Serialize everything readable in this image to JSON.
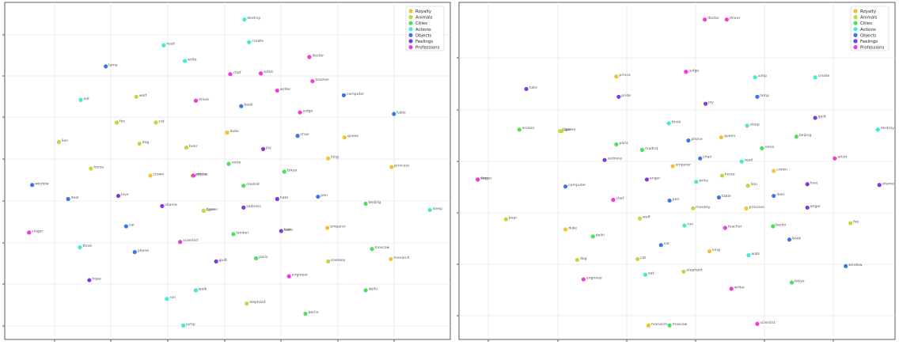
{
  "chart_data": [
    {
      "type": "scatter",
      "title": "",
      "xlabel": "",
      "ylabel": "",
      "grid": true,
      "legend_position": "top-right",
      "xlim": [
        0,
        569
      ],
      "ylim": [
        432,
        0
      ],
      "series": [
        {
          "name": "Royalty",
          "color": "#f2c232",
          "points": [
            {
              "label": "monarch",
              "x": 493,
              "y": 103
            },
            {
              "label": "emperor",
              "x": 412,
              "y": 143
            },
            {
              "label": "queen",
              "x": 254,
              "y": 165
            },
            {
              "label": "crown",
              "x": 186,
              "y": 210
            },
            {
              "label": "princess",
              "x": 494,
              "y": 221
            },
            {
              "label": "king",
              "x": 413,
              "y": 232
            },
            {
              "label": "queen",
              "x": 434,
              "y": 259
            },
            {
              "label": "duke",
              "x": 284,
              "y": 265
            },
            {
              "label": "prince",
              "x": 240,
              "y": 210
            }
          ]
        },
        {
          "name": "Animals",
          "color": "#b4e03c",
          "points": [
            {
              "label": "elephant",
              "x": 309,
              "y": 46
            },
            {
              "label": "monkey",
              "x": 413,
              "y": 100
            },
            {
              "label": "tiger",
              "x": 254,
              "y": 165
            },
            {
              "label": "horse",
              "x": 110,
              "y": 219
            },
            {
              "label": "lion",
              "x": 69,
              "y": 253
            },
            {
              "label": "dog",
              "x": 172,
              "y": 251
            },
            {
              "label": "bear",
              "x": 232,
              "y": 246
            },
            {
              "label": "fox",
              "x": 143,
              "y": 278
            },
            {
              "label": "cat",
              "x": 193,
              "y": 278
            },
            {
              "label": "wolf",
              "x": 168,
              "y": 311
            }
          ]
        },
        {
          "name": "Cities",
          "color": "#50e05a",
          "points": [
            {
              "label": "berlin",
              "x": 384,
              "y": 33
            },
            {
              "label": "delhi",
              "x": 461,
              "y": 63
            },
            {
              "label": "paris",
              "x": 321,
              "y": 104
            },
            {
              "label": "moscow",
              "x": 469,
              "y": 116
            },
            {
              "label": "london",
              "x": 292,
              "y": 135
            },
            {
              "label": "beijing",
              "x": 461,
              "y": 174
            },
            {
              "label": "madrid",
              "x": 305,
              "y": 197
            },
            {
              "label": "tokyo",
              "x": 357,
              "y": 215
            },
            {
              "label": "rome",
              "x": 286,
              "y": 225
            },
            {
              "label": "cairo",
              "x": 353,
              "y": 139
            }
          ]
        },
        {
          "name": "Actions",
          "color": "#46ead2",
          "points": [
            {
              "label": "jump",
              "x": 228,
              "y": 18
            },
            {
              "label": "run",
              "x": 207,
              "y": 52
            },
            {
              "label": "walk",
              "x": 244,
              "y": 63
            },
            {
              "label": "think",
              "x": 96,
              "y": 118
            },
            {
              "label": "sleep",
              "x": 543,
              "y": 166
            },
            {
              "label": "eat",
              "x": 97,
              "y": 307
            },
            {
              "label": "write",
              "x": 230,
              "y": 357
            },
            {
              "label": "read",
              "x": 203,
              "y": 377
            },
            {
              "label": "create",
              "x": 312,
              "y": 381
            },
            {
              "label": "destroy",
              "x": 306,
              "y": 410
            }
          ]
        },
        {
          "name": "Objects",
          "color": "#3a78e6",
          "points": [
            {
              "label": "phone",
              "x": 166,
              "y": 112
            },
            {
              "label": "car",
              "x": 155,
              "y": 145
            },
            {
              "label": "door",
              "x": 81,
              "y": 180
            },
            {
              "label": "pen",
              "x": 400,
              "y": 183
            },
            {
              "label": "window",
              "x": 35,
              "y": 198
            },
            {
              "label": "chair",
              "x": 374,
              "y": 261
            },
            {
              "label": "table",
              "x": 497,
              "y": 289
            },
            {
              "label": "book",
              "x": 302,
              "y": 299
            },
            {
              "label": "computer",
              "x": 433,
              "y": 313
            },
            {
              "label": "lamp",
              "x": 129,
              "y": 350
            }
          ]
        },
        {
          "name": "Feelings",
          "color": "#7d3ae0",
          "points": [
            {
              "label": "hope",
              "x": 108,
              "y": 76
            },
            {
              "label": "guilt",
              "x": 270,
              "y": 100
            },
            {
              "label": "fear",
              "x": 353,
              "y": 139
            },
            {
              "label": "shame",
              "x": 201,
              "y": 171
            },
            {
              "label": "sadness",
              "x": 305,
              "y": 169
            },
            {
              "label": "love",
              "x": 145,
              "y": 184
            },
            {
              "label": "hate",
              "x": 348,
              "y": 180
            },
            {
              "label": "joy",
              "x": 330,
              "y": 244
            }
          ]
        },
        {
          "name": "Professions",
          "color": "#f03cd4",
          "points": [
            {
              "label": "engineer",
              "x": 363,
              "y": 81
            },
            {
              "label": "scientist",
              "x": 224,
              "y": 125
            },
            {
              "label": "singer",
              "x": 31,
              "y": 137
            },
            {
              "label": "doctor",
              "x": 241,
              "y": 210
            },
            {
              "label": "judge",
              "x": 377,
              "y": 291
            },
            {
              "label": "driver",
              "x": 244,
              "y": 306
            },
            {
              "label": "writer",
              "x": 348,
              "y": 319
            },
            {
              "label": "teacher",
              "x": 393,
              "y": 331
            },
            {
              "label": "chef",
              "x": 288,
              "y": 340
            },
            {
              "label": "artist",
              "x": 327,
              "y": 341
            },
            {
              "label": "doctor",
              "x": 389,
              "y": 362
            }
          ]
        }
      ]
    },
    {
      "type": "scatter",
      "title": "",
      "xlabel": "",
      "ylabel": "",
      "grid": true,
      "legend_position": "top-right",
      "xlim": [
        0,
        557
      ],
      "ylim": [
        432,
        0
      ],
      "series": [
        {
          "name": "Royalty",
          "color": "#f2c232",
          "points": [
            {
              "label": "monarch",
              "x": 242,
              "y": 18
            },
            {
              "label": "duke",
              "x": 136,
              "y": 141
            },
            {
              "label": "king",
              "x": 320,
              "y": 113
            },
            {
              "label": "princess",
              "x": 367,
              "y": 168
            },
            {
              "label": "crown",
              "x": 402,
              "y": 216
            },
            {
              "label": "emperor",
              "x": 273,
              "y": 222
            },
            {
              "label": "queen",
              "x": 335,
              "y": 259
            },
            {
              "label": "queen",
              "x": 131,
              "y": 267
            },
            {
              "label": "prince",
              "x": 201,
              "y": 337
            }
          ]
        },
        {
          "name": "Animals",
          "color": "#b4e03c",
          "points": [
            {
              "label": "elephant",
              "x": 287,
              "y": 87
            },
            {
              "label": "dog",
              "x": 151,
              "y": 102
            },
            {
              "label": "cat",
              "x": 228,
              "y": 103
            },
            {
              "label": "bear",
              "x": 60,
              "y": 154
            },
            {
              "label": "wolf",
              "x": 231,
              "y": 155
            },
            {
              "label": "monkey",
              "x": 299,
              "y": 168
            },
            {
              "label": "lion",
              "x": 369,
              "y": 197
            },
            {
              "label": "fox",
              "x": 500,
              "y": 149
            },
            {
              "label": "horse",
              "x": 336,
              "y": 210
            },
            {
              "label": "tiger",
              "x": 129,
              "y": 267
            }
          ]
        },
        {
          "name": "Cities",
          "color": "#50e05a",
          "points": [
            {
              "label": "moscow",
              "x": 269,
              "y": 18
            },
            {
              "label": "tokyo",
              "x": 425,
              "y": 73
            },
            {
              "label": "delhi",
              "x": 171,
              "y": 132
            },
            {
              "label": "berlin",
              "x": 401,
              "y": 145
            },
            {
              "label": "madrid",
              "x": 234,
              "y": 243
            },
            {
              "label": "paris",
              "x": 201,
              "y": 250
            },
            {
              "label": "rome",
              "x": 387,
              "y": 245
            },
            {
              "label": "beijing",
              "x": 431,
              "y": 260
            },
            {
              "label": "london",
              "x": 77,
              "y": 269
            }
          ]
        },
        {
          "name": "Actions",
          "color": "#46ead2",
          "points": [
            {
              "label": "eat",
              "x": 238,
              "y": 83
            },
            {
              "label": "walk",
              "x": 370,
              "y": 108
            },
            {
              "label": "run",
              "x": 288,
              "y": 146
            },
            {
              "label": "write",
              "x": 303,
              "y": 202
            },
            {
              "label": "read",
              "x": 361,
              "y": 228
            },
            {
              "label": "think",
              "x": 268,
              "y": 277
            },
            {
              "label": "sleep",
              "x": 368,
              "y": 274
            },
            {
              "label": "destroy",
              "x": 535,
              "y": 269
            },
            {
              "label": "jump",
              "x": 378,
              "y": 336
            },
            {
              "label": "create",
              "x": 455,
              "y": 336
            }
          ]
        },
        {
          "name": "Objects",
          "color": "#3a78e6",
          "points": [
            {
              "label": "window",
              "x": 494,
              "y": 94
            },
            {
              "label": "car",
              "x": 258,
              "y": 121
            },
            {
              "label": "book",
              "x": 422,
              "y": 128
            },
            {
              "label": "pen",
              "x": 269,
              "y": 178
            },
            {
              "label": "table",
              "x": 332,
              "y": 182
            },
            {
              "label": "door",
              "x": 402,
              "y": 184
            },
            {
              "label": "computer",
              "x": 136,
              "y": 196
            },
            {
              "label": "chair",
              "x": 308,
              "y": 232
            },
            {
              "label": "phone",
              "x": 293,
              "y": 255
            },
            {
              "label": "lamp",
              "x": 381,
              "y": 311
            }
          ]
        },
        {
          "name": "Feelings",
          "color": "#7d3ae0",
          "points": [
            {
              "label": "anger",
              "x": 240,
              "y": 205
            },
            {
              "label": "love",
              "x": 445,
              "y": 199
            },
            {
              "label": "shame",
              "x": 537,
              "y": 198
            },
            {
              "label": "sadness",
              "x": 186,
              "y": 230
            },
            {
              "label": "joy",
              "x": 315,
              "y": 302
            },
            {
              "label": "guilt",
              "x": 455,
              "y": 284
            },
            {
              "label": "hate",
              "x": 86,
              "y": 321
            },
            {
              "label": "fear",
              "x": 24,
              "y": 205
            },
            {
              "label": "anger",
              "x": 445,
              "y": 169
            },
            {
              "label": "pride",
              "x": 204,
              "y": 311
            }
          ]
        },
        {
          "name": "Professions",
          "color": "#f03cd4",
          "points": [
            {
              "label": "scientist",
              "x": 381,
              "y": 20
            },
            {
              "label": "writer",
              "x": 348,
              "y": 65
            },
            {
              "label": "engineer",
              "x": 159,
              "y": 77
            },
            {
              "label": "teacher",
              "x": 340,
              "y": 143
            },
            {
              "label": "chef",
              "x": 197,
              "y": 179
            },
            {
              "label": "singer",
              "x": 24,
              "y": 205
            },
            {
              "label": "artist",
              "x": 480,
              "y": 232
            },
            {
              "label": "judge",
              "x": 290,
              "y": 343
            },
            {
              "label": "doctor",
              "x": 314,
              "y": 410
            },
            {
              "label": "driver",
              "x": 342,
              "y": 410
            }
          ]
        }
      ]
    }
  ]
}
